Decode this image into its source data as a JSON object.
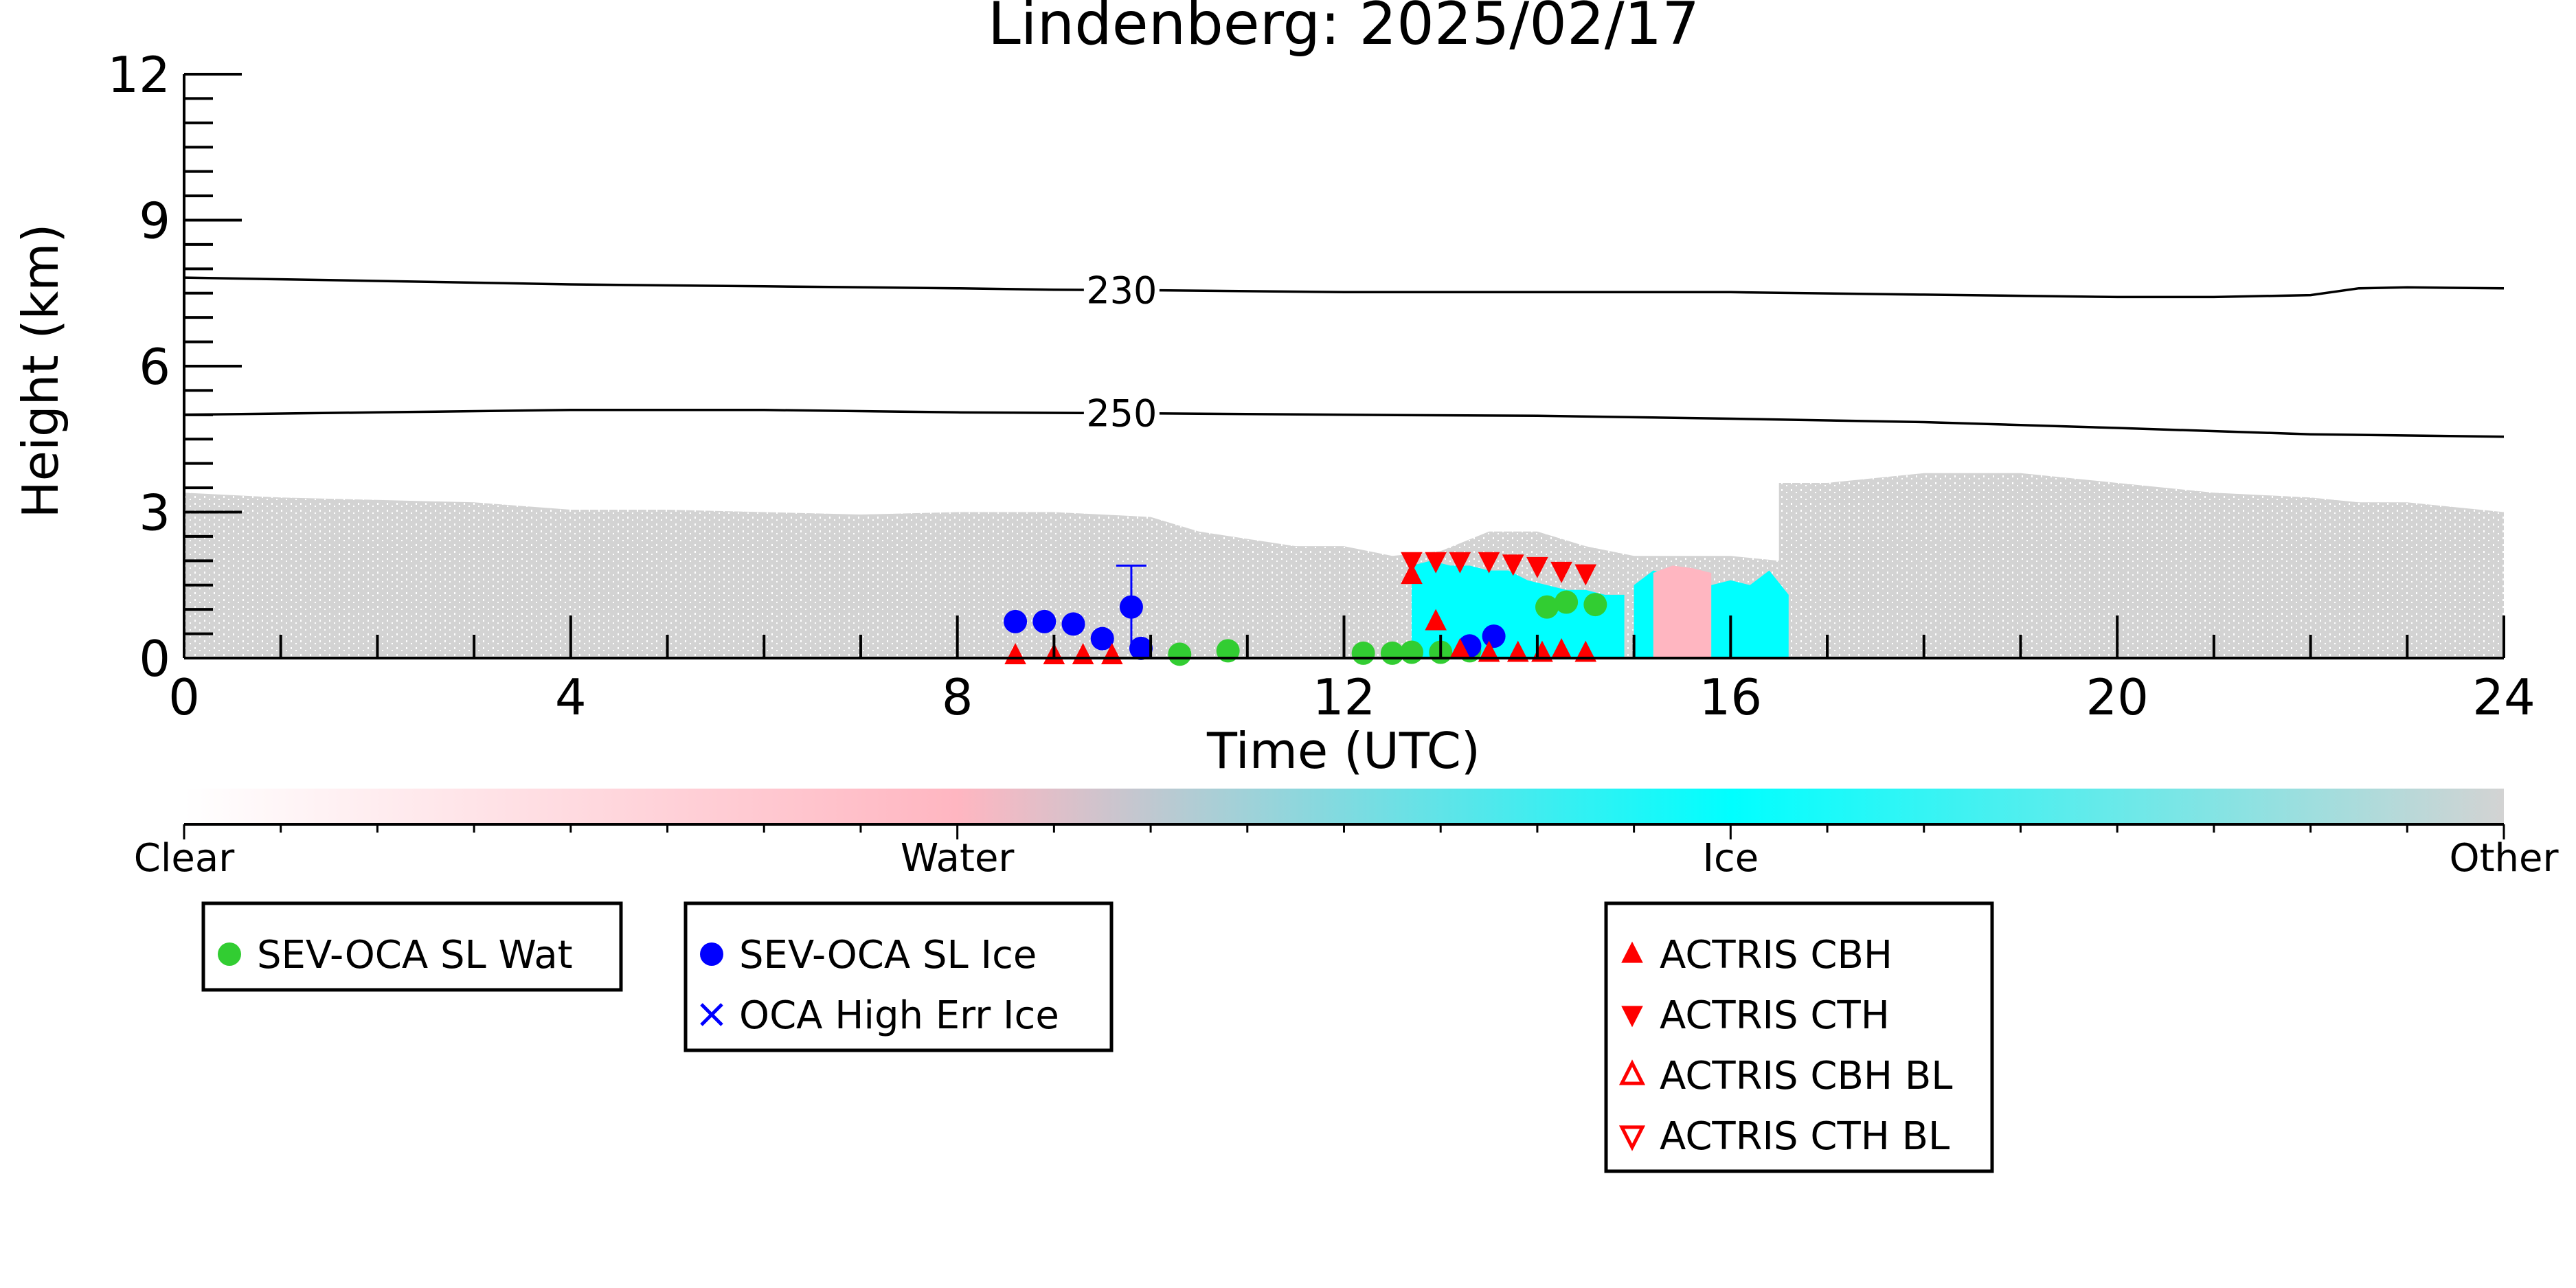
{
  "chart_data": {
    "type": "scatter",
    "title": "Lindenberg: 2025/02/17",
    "xlabel": "Time (UTC)",
    "ylabel": "Height (km)",
    "xlim": [
      0,
      24
    ],
    "ylim": [
      0,
      12
    ],
    "xticks": [
      "0",
      "4",
      "8",
      "12",
      "16",
      "20",
      "24"
    ],
    "yticks": [
      "0",
      "3",
      "6",
      "9",
      "12"
    ],
    "contours": [
      {
        "label": "230",
        "x": [
          0,
          2,
          4,
          6,
          8,
          9,
          10,
          12,
          14,
          16,
          18,
          20,
          21,
          22,
          22.5,
          23,
          24
        ],
        "y": [
          7.82,
          7.75,
          7.68,
          7.64,
          7.6,
          7.57,
          7.56,
          7.52,
          7.52,
          7.52,
          7.47,
          7.42,
          7.42,
          7.46,
          7.6,
          7.62,
          7.6
        ]
      },
      {
        "label": "250",
        "x": [
          0,
          2,
          4,
          6,
          8,
          10,
          12,
          14,
          16,
          18,
          20,
          22,
          24
        ],
        "y": [
          5.0,
          5.05,
          5.1,
          5.1,
          5.05,
          5.03,
          5.0,
          4.98,
          4.92,
          4.85,
          4.73,
          4.6,
          4.55
        ]
      }
    ],
    "cloud_phase_colorbar": {
      "labels": [
        "Clear",
        "Water",
        "Ice",
        "Other"
      ],
      "colors": [
        "#ffffff",
        "#ffb6c1",
        "#00ffff",
        "#d3d3d3"
      ]
    },
    "cloud_mask_regions": [
      {
        "phase": "Other",
        "x0": 0,
        "x1": 10,
        "top": [
          3.4,
          3.3,
          3.25,
          3.2,
          3.05,
          3.05,
          3.0,
          2.95,
          3.0,
          3.0,
          2.9
        ]
      },
      {
        "phase": "Other",
        "x0": 10,
        "x1": 16.5,
        "top": [
          2.9,
          2.6,
          2.45,
          2.3,
          2.3,
          2.1,
          2.2,
          2.6,
          2.6,
          2.3,
          2.1,
          2.1,
          2.1,
          2.0
        ]
      },
      {
        "phase": "Other",
        "x0": 16.5,
        "x1": 24,
        "top": [
          3.6,
          3.6,
          3.7,
          3.8,
          3.8,
          3.8,
          3.7,
          3.6,
          3.5,
          3.4,
          3.35,
          3.3,
          3.2,
          3.2,
          3.1,
          3.0
        ]
      },
      {
        "phase": "Ice",
        "x0": 12.7,
        "x1": 14.9,
        "top": [
          1.9,
          2.0,
          1.9,
          1.9,
          1.8,
          1.8,
          1.6,
          1.5,
          1.4,
          1.4,
          1.3,
          1.3
        ]
      },
      {
        "phase": "Ice",
        "x0": 15.0,
        "x1": 16.6,
        "top": [
          1.5,
          1.8,
          1.7,
          1.6,
          1.5,
          1.6,
          1.5,
          1.8,
          1.3
        ]
      },
      {
        "phase": "Water",
        "x0": 15.2,
        "x1": 15.8,
        "top": [
          1.75,
          1.9,
          1.85,
          1.75
        ]
      }
    ],
    "series": [
      {
        "name": "SEV-OCA SL Wat",
        "marker": "circle",
        "color": "#32cd32",
        "x": [
          10.3,
          10.8,
          12.2,
          12.5,
          12.7,
          13.0,
          13.3,
          14.1,
          14.3,
          14.6
        ],
        "y": [
          0.08,
          0.15,
          0.1,
          0.1,
          0.12,
          0.12,
          0.15,
          1.05,
          1.15,
          1.1
        ]
      },
      {
        "name": "SEV-OCA SL Ice",
        "marker": "circle",
        "color": "#0000ff",
        "x": [
          8.6,
          8.9,
          9.2,
          9.5,
          9.8,
          9.9,
          13.3,
          13.55
        ],
        "y": [
          0.75,
          0.75,
          0.7,
          0.4,
          1.05,
          0.2,
          0.25,
          0.45
        ]
      },
      {
        "name": "OCA High Err Ice",
        "marker": "x",
        "color": "#0000ff",
        "x": [],
        "y": []
      },
      {
        "name": "ACTRIS CBH",
        "marker": "triangle-up-filled",
        "color": "#ff0000",
        "x": [
          12.7,
          12.95,
          13.2,
          13.5,
          13.8,
          14.05,
          14.25,
          14.5,
          8.6,
          9.0,
          9.3,
          9.6
        ],
        "y": [
          1.7,
          0.75,
          0.15,
          0.1,
          0.1,
          0.1,
          0.15,
          0.1,
          0.05,
          0.05,
          0.05,
          0.05
        ]
      },
      {
        "name": "ACTRIS CTH",
        "marker": "triangle-down-filled",
        "color": "#ff0000",
        "x": [
          12.7,
          12.95,
          13.2,
          13.5,
          13.75,
          14.0,
          14.25,
          14.5
        ],
        "y": [
          2.0,
          2.0,
          2.0,
          2.0,
          1.95,
          1.9,
          1.8,
          1.75
        ]
      },
      {
        "name": "ACTRIS CBH BL",
        "marker": "triangle-up-open",
        "color": "#ff0000",
        "x": [],
        "y": []
      },
      {
        "name": "ACTRIS CTH BL",
        "marker": "triangle-down-open",
        "color": "#ff0000",
        "x": [],
        "y": []
      }
    ],
    "errorbars": [
      {
        "x": 9.8,
        "ylow": 0.2,
        "yhigh": 1.9,
        "color": "#0000ff"
      }
    ],
    "legends": [
      {
        "entries": [
          "SEV-OCA SL Wat"
        ]
      },
      {
        "entries": [
          "SEV-OCA SL Ice",
          "OCA High Err Ice"
        ]
      },
      {
        "entries": [
          "ACTRIS CBH",
          "ACTRIS CTH",
          "ACTRIS CBH BL",
          "ACTRIS CTH BL"
        ]
      }
    ]
  }
}
